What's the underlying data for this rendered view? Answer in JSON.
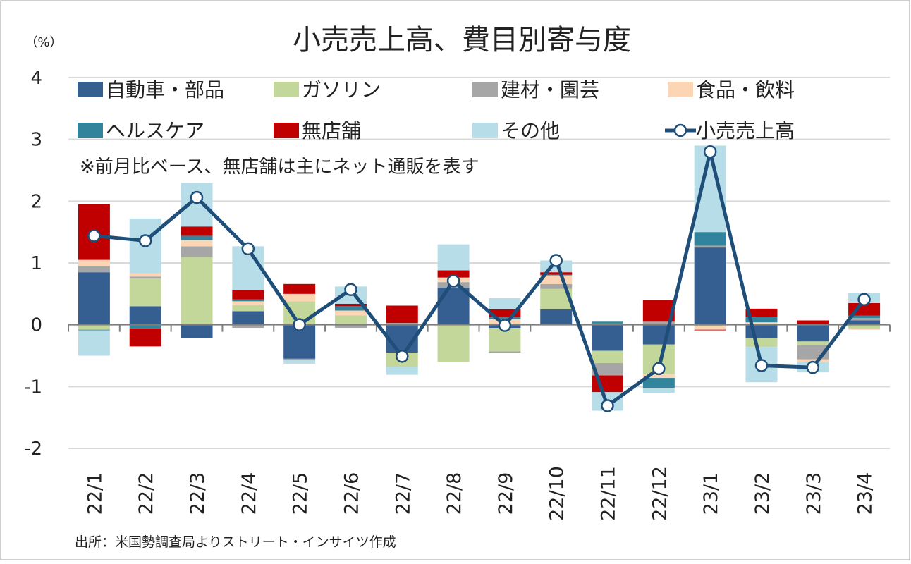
{
  "chart_data": {
    "type": "bar",
    "stacked": true,
    "title": "小売売上高、費目別寄与度",
    "ylabel": "（%）",
    "note": "※前月比ベース、無店舗は主にネット通販を表す",
    "source": "出所：米国勢調査局よりストリート・インサイツ作成",
    "ylim": [
      -2,
      4
    ],
    "yticks": [
      "4",
      "3",
      "2",
      "1",
      "0",
      "-1",
      "-2"
    ],
    "ytick_values": [
      4,
      3,
      2,
      1,
      0,
      -1,
      -2
    ],
    "grid": true,
    "legend_position": "top",
    "categories": [
      "22/1",
      "22/2",
      "22/3",
      "22/4",
      "22/5",
      "22/6",
      "22/7",
      "22/8",
      "22/9",
      "22/10",
      "22/11",
      "22/12",
      "23/1",
      "23/2",
      "23/3",
      "23/4"
    ],
    "series": [
      {
        "name": "自動車・部品",
        "color": "#365f91",
        "values": [
          0.85,
          0.3,
          -0.22,
          0.22,
          -0.55,
          0.02,
          -0.45,
          0.6,
          -0.05,
          0.25,
          -0.42,
          -0.32,
          1.25,
          -0.22,
          -0.27,
          0.07
        ]
      },
      {
        "name": "ガソリン",
        "color": "#c4d79b",
        "values": [
          -0.08,
          0.45,
          1.1,
          0.1,
          0.38,
          0.13,
          -0.23,
          -0.6,
          -0.38,
          0.33,
          -0.2,
          -0.48,
          -0.02,
          -0.14,
          -0.06,
          -0.06
        ]
      },
      {
        "name": "建材・園芸",
        "color": "#a6a6a6",
        "values": [
          0.1,
          0.03,
          0.17,
          -0.05,
          -0.02,
          -0.05,
          0.03,
          0.09,
          -0.02,
          0.08,
          -0.2,
          0.05,
          0.03,
          0.0,
          -0.23,
          0.04
        ]
      },
      {
        "name": "食品・飲料",
        "color": "#fcd5b5",
        "values": [
          0.1,
          0.05,
          0.1,
          0.06,
          0.12,
          0.08,
          0.0,
          0.07,
          0.09,
          0.14,
          0.02,
          -0.06,
          -0.06,
          0.04,
          -0.04,
          -0.02
        ]
      },
      {
        "name": "ヘルスケア",
        "color": "#31849b",
        "values": [
          -0.01,
          -0.06,
          0.07,
          0.03,
          0.0,
          0.07,
          0.0,
          0.01,
          0.03,
          0.01,
          0.03,
          -0.16,
          0.22,
          0.09,
          0.0,
          0.04
        ]
      },
      {
        "name": "無店舗",
        "color": "#c00000",
        "values": [
          0.9,
          -0.29,
          0.15,
          0.15,
          0.16,
          0.04,
          0.28,
          0.11,
          0.13,
          0.04,
          -0.27,
          0.35,
          -0.01,
          0.13,
          0.07,
          0.2
        ]
      },
      {
        "name": "その他",
        "color": "#b7dee8",
        "values": [
          -0.41,
          0.89,
          0.7,
          0.71,
          -0.06,
          0.28,
          -0.13,
          0.42,
          0.18,
          0.19,
          -0.3,
          -0.08,
          1.4,
          -0.57,
          -0.17,
          0.16
        ]
      }
    ],
    "line": {
      "name": "小売売上高",
      "color": "#1f4e79",
      "values": [
        1.44,
        1.36,
        2.06,
        1.23,
        0.0,
        0.57,
        -0.51,
        0.71,
        -0.01,
        1.04,
        -1.31,
        -0.71,
        2.8,
        -0.66,
        -0.69,
        0.41
      ]
    }
  }
}
